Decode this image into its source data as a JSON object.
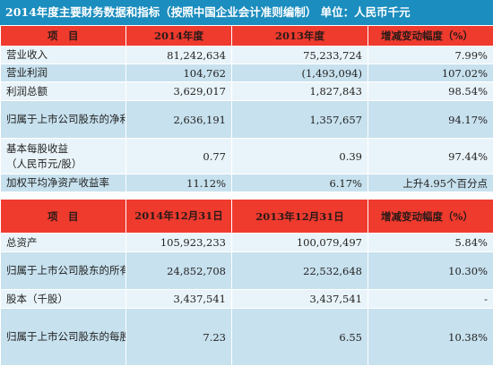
{
  "title": "2014年度主要财务数据和指标（按照中国企业会计准则编制）   单位：人民币千元",
  "table1": {
    "headers": [
      "项　目",
      "2014年度",
      "2013年度",
      "增减变动幅度（%）"
    ],
    "rows": [
      [
        "营业收入",
        "81,242,634",
        "75,233,724",
        "7.99%"
      ],
      [
        "营业利润",
        "104,762",
        "(1,493,094)",
        "107.02%"
      ],
      [
        "利润总额",
        "3,629,017",
        "1,827,843",
        "98.54%"
      ],
      [
        "归属于上市公司股东的净利润",
        "2,636,191",
        "1,357,657",
        "94.17%"
      ],
      [
        "基本每股收益\n（人民币元/股）",
        "0.77",
        "0.39",
        "97.44%"
      ],
      [
        "加权平均净资产收益率",
        "11.12%",
        "6.17%",
        "上升4.95个百分点"
      ]
    ]
  },
  "table2": {
    "headers": [
      "项　目",
      "2014年12月31日",
      "2013年12月31日",
      "增减变动幅度（%）"
    ],
    "rows": [
      [
        "总资产",
        "105,923,233",
        "100,079,497",
        "5.84%"
      ],
      [
        "归属于上市公司股东的所有者权益",
        "24,852,708",
        "22,532,648",
        "10.30%"
      ],
      [
        "股本（千股）",
        "3,437,541",
        "3,437,541",
        "-"
      ],
      [
        "归属于上市公司股东的每股净资产（人民币元/股）",
        "7.23",
        "6.55",
        "10.38%"
      ]
    ]
  }
}
